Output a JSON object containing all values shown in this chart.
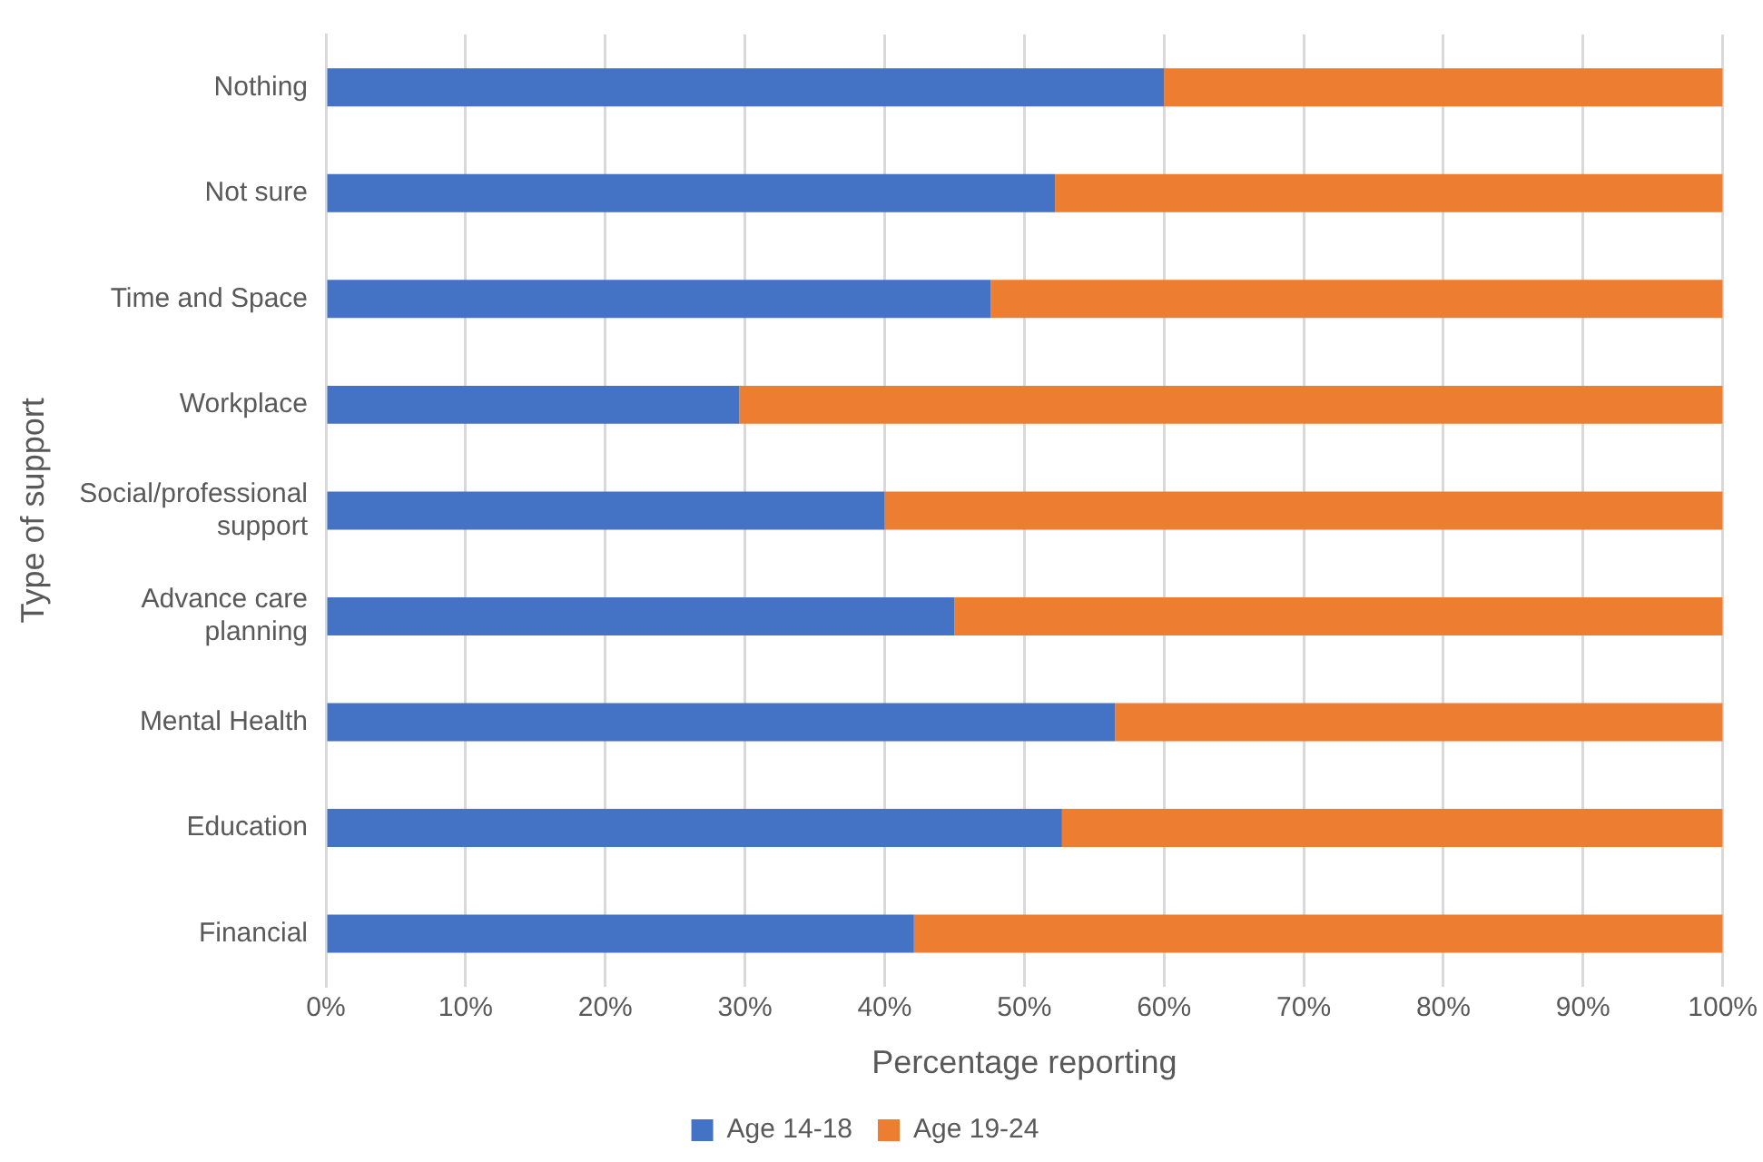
{
  "chart_data": {
    "type": "bar",
    "orientation": "horizontal",
    "stacked": true,
    "xlabel": "Percentage reporting",
    "ylabel": "Type of support",
    "categories": [
      "Nothing",
      "Not sure",
      "Time and Space",
      "Workplace",
      "Social/professional support",
      "Advance care planning",
      "Mental Health",
      "Education",
      "Financial"
    ],
    "series": [
      {
        "name": "Age 14-18",
        "color": "#4472c4",
        "values": [
          60.0,
          52.2,
          47.6,
          29.6,
          40.0,
          45.0,
          56.5,
          52.7,
          42.1
        ]
      },
      {
        "name": "Age 19-24",
        "color": "#ed7d31",
        "values": [
          40.0,
          47.8,
          52.4,
          70.4,
          60.0,
          55.0,
          43.5,
          47.3,
          57.9
        ]
      }
    ],
    "xlim": [
      0,
      100
    ],
    "xticks": [
      {
        "value": 0,
        "label": "0%"
      },
      {
        "value": 10,
        "label": "10%"
      },
      {
        "value": 20,
        "label": "20%"
      },
      {
        "value": 30,
        "label": "30%"
      },
      {
        "value": 40,
        "label": "40%"
      },
      {
        "value": 50,
        "label": "50%"
      },
      {
        "value": 60,
        "label": "60%"
      },
      {
        "value": 70,
        "label": "70%"
      },
      {
        "value": 80,
        "label": "80%"
      },
      {
        "value": 90,
        "label": "90%"
      },
      {
        "value": 100,
        "label": "100%"
      }
    ],
    "grid": "x",
    "legend": "bottom"
  }
}
